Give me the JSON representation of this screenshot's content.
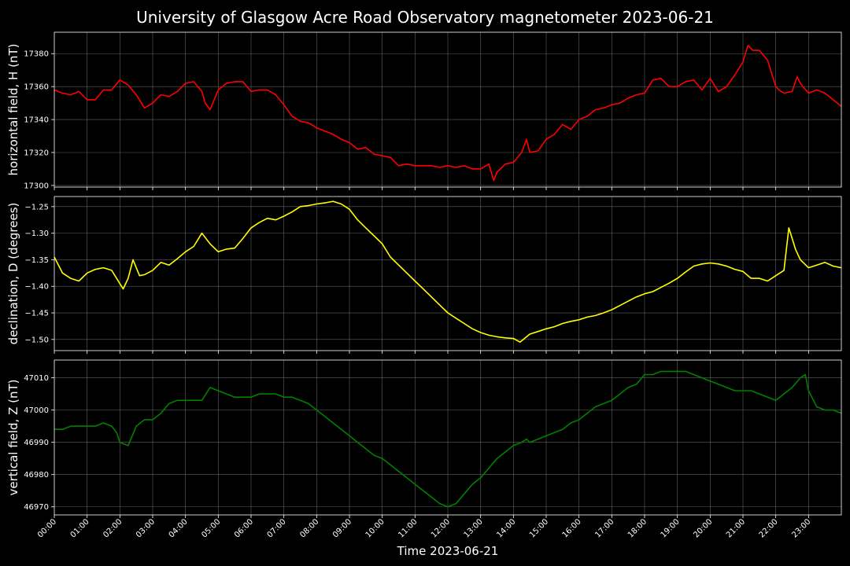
{
  "chart_data": {
    "type": "line",
    "title": "University of Glasgow Acre Road Observatory magnetometer 2023-06-21",
    "xlabel": "Time 2023-06-21",
    "xlim": [
      "00:00",
      "24:00"
    ],
    "x_tick_labels": [
      "00:00",
      "01:00",
      "02:00",
      "03:00",
      "04:00",
      "05:00",
      "06:00",
      "07:00",
      "08:00",
      "09:00",
      "10:00",
      "11:00",
      "12:00",
      "13:00",
      "14:00",
      "15:00",
      "16:00",
      "17:00",
      "18:00",
      "19:00",
      "20:00",
      "21:00",
      "22:00",
      "23:00"
    ],
    "grid": true,
    "background": "#000000",
    "grid_color": "#808080",
    "panels": [
      {
        "ylabel": "horizontal field, H (nT)",
        "color": "#ff0000",
        "ylim": [
          17299,
          17393
        ],
        "yticks": [
          17300,
          17320,
          17340,
          17360,
          17380
        ],
        "ytick_labels": [
          "17300",
          "17320",
          "17340",
          "17360",
          "17380"
        ],
        "x": [
          0,
          0.25,
          0.5,
          0.75,
          1.0,
          1.25,
          1.5,
          1.75,
          2.0,
          2.25,
          2.5,
          2.75,
          3.0,
          3.25,
          3.5,
          3.75,
          4.0,
          4.25,
          4.5,
          4.6,
          4.75,
          5.0,
          5.25,
          5.5,
          5.75,
          6.0,
          6.25,
          6.5,
          6.75,
          7.0,
          7.25,
          7.5,
          7.75,
          8.0,
          8.25,
          8.5,
          8.75,
          9.0,
          9.25,
          9.5,
          9.75,
          10.0,
          10.25,
          10.5,
          10.75,
          11.0,
          11.25,
          11.5,
          11.75,
          12.0,
          12.25,
          12.5,
          12.75,
          13.0,
          13.25,
          13.4,
          13.5,
          13.75,
          14.0,
          14.25,
          14.4,
          14.5,
          14.75,
          15.0,
          15.25,
          15.5,
          15.75,
          16.0,
          16.25,
          16.5,
          16.75,
          17.0,
          17.25,
          17.5,
          17.75,
          18.0,
          18.25,
          18.5,
          18.75,
          19.0,
          19.25,
          19.5,
          19.75,
          20.0,
          20.25,
          20.5,
          20.75,
          21.0,
          21.15,
          21.3,
          21.5,
          21.75,
          22.0,
          22.1,
          22.25,
          22.5,
          22.65,
          22.75,
          23.0,
          23.25,
          23.5,
          23.75,
          24.0
        ],
        "y": [
          17358,
          17356,
          17355,
          17357,
          17352,
          17352,
          17358,
          17358,
          17364,
          17361,
          17355,
          17347,
          17350,
          17355,
          17354,
          17357,
          17362,
          17363,
          17357,
          17350,
          17346,
          17358,
          17362,
          17363,
          17363,
          17357,
          17358,
          17358,
          17355,
          17349,
          17342,
          17339,
          17338,
          17335,
          17333,
          17331,
          17328,
          17326,
          17322,
          17323,
          17319,
          17318,
          17317,
          17312,
          17313,
          17312,
          17312,
          17312,
          17311,
          17312,
          17311,
          17312,
          17310,
          17310,
          17313,
          17303,
          17308,
          17313,
          17314,
          17320,
          17328,
          17320,
          17321,
          17328,
          17331,
          17337,
          17334,
          17340,
          17342,
          17346,
          17347,
          17349,
          17350,
          17353,
          17355,
          17356,
          17364,
          17365,
          17360,
          17360,
          17363,
          17364,
          17358,
          17365,
          17357,
          17360,
          17367,
          17375,
          17385,
          17382,
          17382,
          17376,
          17360,
          17358,
          17356,
          17357,
          17366,
          17362,
          17356,
          17358,
          17356,
          17352,
          17348
        ]
      },
      {
        "ylabel": "declination, D (degrees)",
        "color": "#ffff00",
        "ylim": [
          -1.521,
          -1.231
        ],
        "yticks": [
          -1.5,
          -1.45,
          -1.4,
          -1.35,
          -1.3,
          -1.25
        ],
        "ytick_labels": [
          "−1.50",
          "−1.45",
          "−1.40",
          "−1.35",
          "−1.30",
          "−1.25"
        ],
        "x": [
          0,
          0.25,
          0.5,
          0.75,
          1.0,
          1.25,
          1.5,
          1.75,
          2.0,
          2.1,
          2.25,
          2.4,
          2.6,
          2.75,
          3.0,
          3.25,
          3.5,
          3.75,
          4.0,
          4.25,
          4.5,
          4.75,
          5.0,
          5.25,
          5.5,
          5.75,
          6.0,
          6.25,
          6.5,
          6.75,
          7.0,
          7.25,
          7.5,
          7.75,
          8.0,
          8.25,
          8.5,
          8.75,
          9.0,
          9.25,
          9.5,
          9.75,
          10.0,
          10.25,
          10.5,
          10.75,
          11.0,
          11.25,
          11.5,
          11.75,
          12.0,
          12.25,
          12.5,
          12.75,
          13.0,
          13.25,
          13.5,
          13.75,
          14.0,
          14.2,
          14.5,
          14.75,
          15.0,
          15.25,
          15.5,
          15.75,
          16.0,
          16.25,
          16.5,
          16.75,
          17.0,
          17.25,
          17.5,
          17.75,
          18.0,
          18.25,
          18.5,
          18.75,
          19.0,
          19.25,
          19.5,
          19.75,
          20.0,
          20.25,
          20.5,
          20.75,
          21.0,
          21.25,
          21.5,
          21.75,
          22.0,
          22.25,
          22.4,
          22.6,
          22.75,
          23.0,
          23.25,
          23.5,
          23.75,
          24.0
        ],
        "y": [
          -1.345,
          -1.375,
          -1.385,
          -1.39,
          -1.375,
          -1.368,
          -1.365,
          -1.37,
          -1.395,
          -1.405,
          -1.385,
          -1.35,
          -1.38,
          -1.378,
          -1.37,
          -1.355,
          -1.36,
          -1.348,
          -1.335,
          -1.325,
          -1.3,
          -1.32,
          -1.335,
          -1.33,
          -1.328,
          -1.31,
          -1.29,
          -1.28,
          -1.272,
          -1.275,
          -1.268,
          -1.26,
          -1.25,
          -1.248,
          -1.245,
          -1.243,
          -1.24,
          -1.245,
          -1.255,
          -1.275,
          -1.29,
          -1.305,
          -1.32,
          -1.345,
          -1.36,
          -1.375,
          -1.39,
          -1.405,
          -1.42,
          -1.435,
          -1.45,
          -1.46,
          -1.47,
          -1.48,
          -1.487,
          -1.492,
          -1.495,
          -1.497,
          -1.498,
          -1.505,
          -1.49,
          -1.485,
          -1.48,
          -1.476,
          -1.47,
          -1.466,
          -1.463,
          -1.458,
          -1.455,
          -1.45,
          -1.444,
          -1.436,
          -1.428,
          -1.42,
          -1.414,
          -1.41,
          -1.402,
          -1.394,
          -1.385,
          -1.373,
          -1.362,
          -1.358,
          -1.356,
          -1.358,
          -1.362,
          -1.368,
          -1.372,
          -1.385,
          -1.385,
          -1.39,
          -1.38,
          -1.37,
          -1.29,
          -1.33,
          -1.35,
          -1.365,
          -1.36,
          -1.355,
          -1.362,
          -1.365
        ]
      },
      {
        "ylabel": "vertical field, Z (nT)",
        "color": "#008000",
        "ylim": [
          46967.5,
          47015.5
        ],
        "yticks": [
          46970,
          46980,
          46990,
          47000,
          47010
        ],
        "ytick_labels": [
          "46970",
          "46980",
          "46990",
          "47000",
          "47010"
        ],
        "x": [
          0,
          0.25,
          0.5,
          0.75,
          1.0,
          1.25,
          1.5,
          1.75,
          1.9,
          2.0,
          2.25,
          2.5,
          2.75,
          3.0,
          3.25,
          3.5,
          3.75,
          4.0,
          4.25,
          4.5,
          4.75,
          5.0,
          5.25,
          5.5,
          5.75,
          6.0,
          6.25,
          6.5,
          6.75,
          7.0,
          7.25,
          7.5,
          7.75,
          8.0,
          8.25,
          8.5,
          8.75,
          9.0,
          9.25,
          9.5,
          9.75,
          10.0,
          10.25,
          10.5,
          10.75,
          11.0,
          11.25,
          11.5,
          11.75,
          12.0,
          12.25,
          12.5,
          12.75,
          13.0,
          13.25,
          13.5,
          13.75,
          14.0,
          14.25,
          14.4,
          14.5,
          14.75,
          15.0,
          15.25,
          15.5,
          15.75,
          16.0,
          16.25,
          16.5,
          16.75,
          17.0,
          17.25,
          17.5,
          17.75,
          18.0,
          18.25,
          18.5,
          18.75,
          19.0,
          19.25,
          19.5,
          19.75,
          20.0,
          20.25,
          20.5,
          20.75,
          21.0,
          21.25,
          21.5,
          21.75,
          22.0,
          22.25,
          22.5,
          22.75,
          22.9,
          23.0,
          23.25,
          23.5,
          23.75,
          24.0
        ],
        "y": [
          46994,
          46994,
          46995,
          46995,
          46995,
          46995,
          46996,
          46995,
          46993,
          46990,
          46989,
          46995,
          46997,
          46997,
          46999,
          47002,
          47003,
          47003,
          47003,
          47003,
          47007,
          47006,
          47005,
          47004,
          47004,
          47004,
          47005,
          47005,
          47005,
          47004,
          47004,
          47003,
          47002,
          47000,
          46998,
          46996,
          46994,
          46992,
          46990,
          46988,
          46986,
          46985,
          46983,
          46981,
          46979,
          46977,
          46975,
          46973,
          46971,
          46970,
          46971,
          46974,
          46977,
          46979,
          46982,
          46985,
          46987,
          46989,
          46990,
          46991,
          46990,
          46991,
          46992,
          46993,
          46994,
          46996,
          46997,
          46999,
          47001,
          47002,
          47003,
          47005,
          47007,
          47008,
          47011,
          47011,
          47012,
          47012,
          47012,
          47012,
          47011,
          47010,
          47009,
          47008,
          47007,
          47006,
          47006,
          47006,
          47005,
          47004,
          47003,
          47005,
          47007,
          47010,
          47011,
          47006,
          47001,
          47000,
          47000,
          46999
        ]
      }
    ]
  }
}
